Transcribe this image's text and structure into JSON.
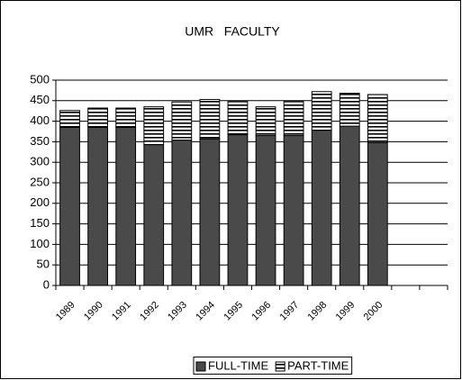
{
  "chart_data": {
    "type": "stacked_bar",
    "title": "UMR   FACULTY",
    "categories": [
      "1989",
      "1990",
      "1991",
      "1992",
      "1993",
      "1994",
      "1995",
      "1996",
      "1997",
      "1998",
      "1999",
      "2000",
      null,
      null
    ],
    "series": [
      {
        "name": "FULL-TIME",
        "color": "#4a4a4a",
        "values": [
          385,
          385,
          385,
          343,
          354,
          357,
          367,
          365,
          365,
          378,
          388,
          348,
          null,
          null
        ]
      },
      {
        "name": "PART-TIME",
        "color": "#ffffff",
        "values": [
          41,
          47,
          47,
          92,
          93,
          96,
          81,
          70,
          83,
          94,
          80,
          117,
          null,
          null
        ]
      }
    ],
    "ylim": [
      0,
      500
    ],
    "yticks": [
      0,
      50,
      100,
      150,
      200,
      250,
      300,
      350,
      400,
      450,
      500
    ],
    "grid": true,
    "legend": "bottom"
  }
}
